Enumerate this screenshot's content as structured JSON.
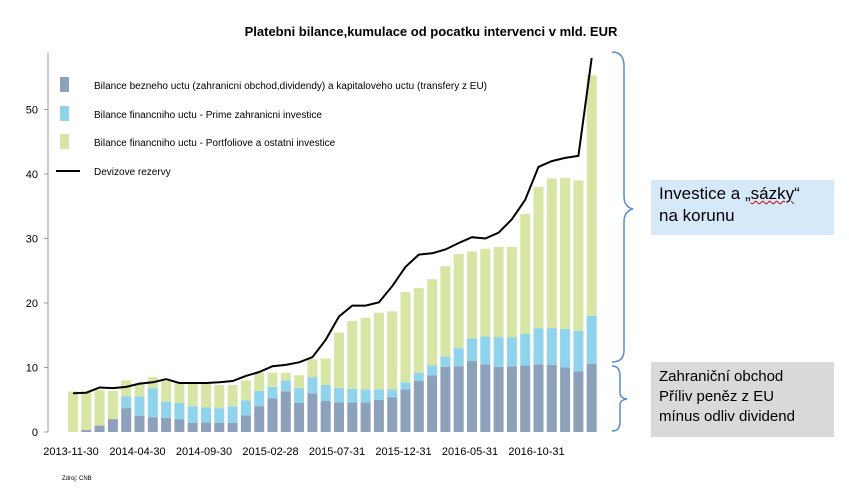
{
  "chart_data": {
    "type": "bar",
    "stacked": true,
    "title": "Platebni bilance,kumulace od pocatku intervenci v mld. EUR",
    "source": "Zdroj: CNB",
    "xlabel": "",
    "ylabel": "",
    "ylim": [
      0,
      60
    ],
    "yticks": [
      0,
      10,
      20,
      30,
      40,
      50
    ],
    "xtick_labels": [
      {
        "label": "2013-11-30",
        "index": 0
      },
      {
        "label": "2014-04-30",
        "index": 5
      },
      {
        "label": "2014-09-30",
        "index": 10
      },
      {
        "label": "2015-02-28",
        "index": 15
      },
      {
        "label": "2015-07-31",
        "index": 20
      },
      {
        "label": "2015-12-31",
        "index": 25
      },
      {
        "label": "2016-05-31",
        "index": 30
      },
      {
        "label": "2016-10-31",
        "index": 35
      }
    ],
    "series": [
      {
        "name": "Bilance bezneho uctu (zahranicni obchod,dividendy) a kapitaloveho uctu (transfery z EU)",
        "color": "#8ea1ba",
        "values": [
          0,
          0.3,
          1.0,
          2.0,
          3.7,
          2.5,
          2.3,
          2.2,
          2.0,
          1.4,
          1.5,
          1.4,
          1.4,
          2.6,
          4.0,
          5.2,
          6.3,
          4.5,
          6.0,
          4.8,
          4.6,
          4.6,
          4.6,
          5.0,
          5.4,
          6.6,
          7.9,
          8.8,
          10.1,
          10.2,
          11.0,
          10.5,
          10.1,
          10.2,
          10.3,
          10.5,
          10.4,
          10.0,
          9.4,
          10.6
        ]
      },
      {
        "name": "Bilance financniho uctu - Prime zahranicni investice",
        "color": "#8fd3ec",
        "values": [
          0,
          0,
          0,
          0,
          1.8,
          3.0,
          4.5,
          2.5,
          2.5,
          2.6,
          2.3,
          2.3,
          2.6,
          2.3,
          2.4,
          1.8,
          1.7,
          2.3,
          2.5,
          2.5,
          2.2,
          2.1,
          2.0,
          1.6,
          1.2,
          1.1,
          1.3,
          1.5,
          1.6,
          2.8,
          3.5,
          4.3,
          4.6,
          4.5,
          4.9,
          5.6,
          5.7,
          6.0,
          6.3,
          7.4
        ]
      },
      {
        "name": "Bilance financniho uctu - Portfoliove a ostatni investice",
        "color": "#d7e6a5",
        "values": [
          6.3,
          6.0,
          5.5,
          4.4,
          2.5,
          2.0,
          1.7,
          3.2,
          3.1,
          3.5,
          3.7,
          3.6,
          3.3,
          3.1,
          2.8,
          2.2,
          1.2,
          2.0,
          2.8,
          4.1,
          8.6,
          10.5,
          11.1,
          11.9,
          12.1,
          14.0,
          13.1,
          13.4,
          14.0,
          14.6,
          13.5,
          13.6,
          14.0,
          14.0,
          18.6,
          21.9,
          23.2,
          23.4,
          23.3,
          37.3
        ]
      }
    ],
    "line_series": {
      "name": "Devizove rezervy",
      "color": "#000000",
      "values": [
        6.0,
        6.1,
        6.9,
        6.8,
        7.0,
        7.5,
        7.7,
        8.2,
        7.6,
        7.6,
        7.6,
        7.7,
        7.9,
        8.7,
        9.3,
        10.2,
        10.4,
        10.8,
        11.6,
        14.3,
        17.9,
        19.6,
        19.6,
        20.1,
        22.6,
        25.6,
        27.5,
        27.7,
        28.3,
        29.3,
        30.2,
        30.0,
        30.9,
        33.0,
        36.0,
        41.1,
        42.0,
        42.5,
        42.8,
        58.0
      ]
    }
  },
  "annotations": {
    "investice": {
      "line1_prefix": "Investice a „",
      "line1_word": "sázky",
      "line1_suffix": "“",
      "line2": "na korunu"
    },
    "obchod": {
      "line1": "Zahraniční obchod",
      "line2": "Příliv peněz z EU",
      "line3": "mínus odliv dividend"
    }
  },
  "colors": {
    "bracket": "#5b8ccc"
  }
}
